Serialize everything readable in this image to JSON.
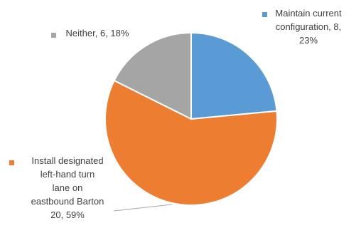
{
  "chart_data": {
    "type": "pie",
    "title": "",
    "slices": [
      {
        "name": "Maintain current configuration",
        "value": 8,
        "percent": 23,
        "color": "#5b9bd5",
        "label_lines": [
          "Maintain current",
          "configuration, 8,",
          "23%"
        ]
      },
      {
        "name": "Install designated left-hand turn lane on eastbound Barton",
        "value": 20,
        "percent": 59,
        "color": "#ed7d31",
        "label_lines": [
          "Install designated",
          "left-hand turn",
          "lane on",
          "eastbound Barton",
          "20, 59%"
        ]
      },
      {
        "name": "Neither",
        "value": 6,
        "percent": 18,
        "color": "#a5a5a5",
        "label_lines": [
          "Neither, 6, 18%"
        ]
      }
    ],
    "legend": "inline-labels"
  }
}
